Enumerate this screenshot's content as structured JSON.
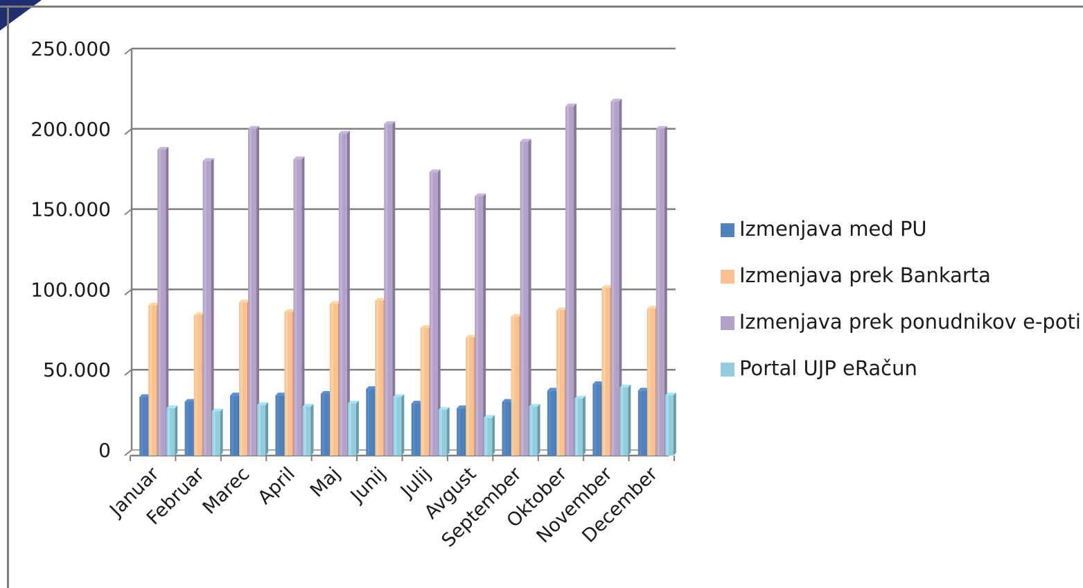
{
  "chart_data": {
    "type": "bar",
    "title": "",
    "xlabel": "",
    "ylabel": "",
    "ylim": [
      0,
      250000
    ],
    "y_ticks": [
      0,
      50000,
      100000,
      150000,
      200000,
      250000
    ],
    "y_tick_labels": [
      "0",
      "50.000",
      "100.000",
      "150.000",
      "200.000",
      "250.000"
    ],
    "grid": true,
    "legend_position": "right",
    "categories": [
      "Januar",
      "Februar",
      "Marec",
      "April",
      "Maj",
      "Junij",
      "Julij",
      "Avgust",
      "September",
      "Oktober",
      "November",
      "December"
    ],
    "series": [
      {
        "name": "Izmenjava med PU",
        "color": "#4f81bd",
        "values": [
          33000,
          30000,
          34000,
          34000,
          35000,
          38000,
          29000,
          26000,
          30000,
          37000,
          41000,
          37000
        ]
      },
      {
        "name": "Izmenjava prek Bankarta",
        "color": "#fac090",
        "values": [
          90000,
          84000,
          92000,
          86000,
          91000,
          93000,
          76000,
          70000,
          83000,
          87000,
          101000,
          88000
        ]
      },
      {
        "name": "Izmenjava prek ponudnikov e-poti",
        "color": "#b3a2c7",
        "values": [
          187000,
          180000,
          200000,
          181000,
          197000,
          203000,
          173000,
          158000,
          192000,
          214000,
          217000,
          200000
        ]
      },
      {
        "name": "Portal UJP eRačun",
        "color": "#93cddd",
        "values": [
          26000,
          24000,
          28000,
          27000,
          29000,
          33000,
          25000,
          20000,
          27000,
          32000,
          39000,
          34000
        ]
      }
    ]
  },
  "icons": {
    "corner": "corner-decoration"
  }
}
